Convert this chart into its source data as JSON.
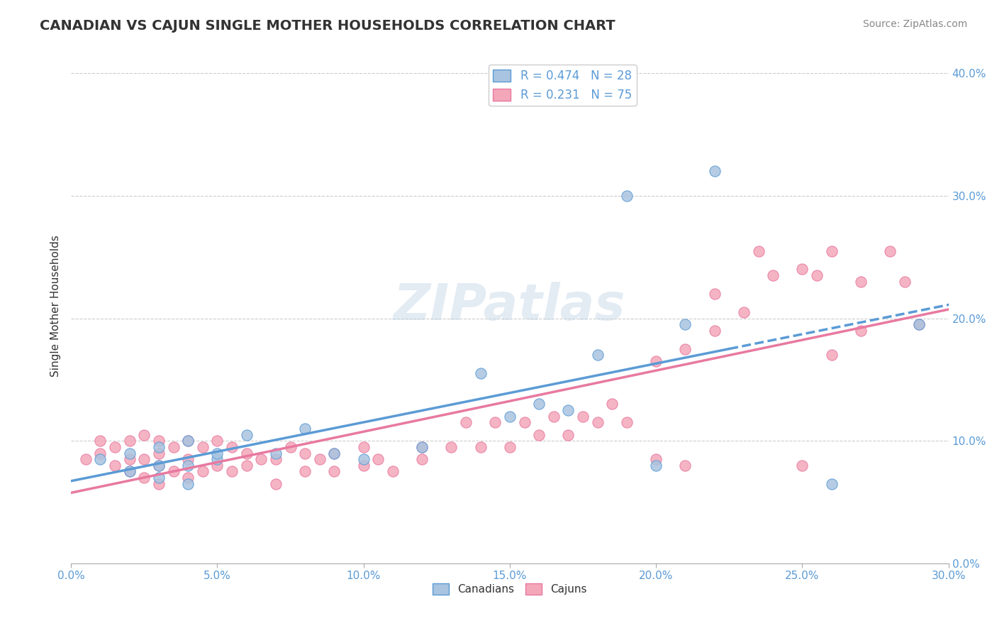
{
  "title": "CANADIAN VS CAJUN SINGLE MOTHER HOUSEHOLDS CORRELATION CHART",
  "source": "Source: ZipAtlas.com",
  "xlabel": "",
  "ylabel": "Single Mother Households",
  "xlim": [
    0.0,
    0.3
  ],
  "ylim": [
    0.0,
    0.42
  ],
  "xticks": [
    0.0,
    0.05,
    0.1,
    0.15,
    0.2,
    0.25,
    0.3
  ],
  "yticks": [
    0.0,
    0.1,
    0.2,
    0.3,
    0.4
  ],
  "ytick_labels_right": [
    "0.0%",
    "10.0%",
    "20.0%",
    "30.0%",
    "40.0%"
  ],
  "xtick_labels": [
    "0.0%",
    "5.0%",
    "10.0%",
    "15.0%",
    "20.0%",
    "25.0%",
    "30.0%"
  ],
  "legend_r1": "R = 0.474   N = 28",
  "legend_r2": "R = 0.231   N = 75",
  "canadians_color": "#a8c4e0",
  "cajuns_color": "#f4a7b9",
  "canadian_line_color": "#5b9bd5",
  "cajun_line_color": "#e879a0",
  "watermark": "ZIPatlas",
  "background_color": "#ffffff",
  "grid_color": "#cccccc",
  "canadians_x": [
    0.01,
    0.02,
    0.02,
    0.03,
    0.03,
    0.03,
    0.04,
    0.04,
    0.04,
    0.05,
    0.05,
    0.06,
    0.07,
    0.08,
    0.09,
    0.1,
    0.12,
    0.14,
    0.15,
    0.16,
    0.17,
    0.18,
    0.19,
    0.2,
    0.21,
    0.22,
    0.26,
    0.29
  ],
  "canadians_y": [
    0.085,
    0.075,
    0.09,
    0.07,
    0.08,
    0.095,
    0.065,
    0.08,
    0.1,
    0.085,
    0.09,
    0.105,
    0.09,
    0.11,
    0.09,
    0.085,
    0.095,
    0.155,
    0.12,
    0.13,
    0.125,
    0.17,
    0.3,
    0.08,
    0.195,
    0.32,
    0.065,
    0.195
  ],
  "cajuns_x": [
    0.005,
    0.01,
    0.01,
    0.015,
    0.015,
    0.02,
    0.02,
    0.02,
    0.025,
    0.025,
    0.025,
    0.03,
    0.03,
    0.03,
    0.03,
    0.035,
    0.035,
    0.04,
    0.04,
    0.04,
    0.045,
    0.045,
    0.05,
    0.05,
    0.055,
    0.055,
    0.06,
    0.06,
    0.065,
    0.07,
    0.07,
    0.075,
    0.08,
    0.08,
    0.085,
    0.09,
    0.09,
    0.1,
    0.1,
    0.105,
    0.11,
    0.12,
    0.12,
    0.13,
    0.135,
    0.14,
    0.145,
    0.15,
    0.155,
    0.16,
    0.165,
    0.17,
    0.175,
    0.18,
    0.185,
    0.19,
    0.2,
    0.21,
    0.22,
    0.22,
    0.23,
    0.235,
    0.24,
    0.25,
    0.255,
    0.26,
    0.27,
    0.28,
    0.285,
    0.2,
    0.21,
    0.25,
    0.26,
    0.27,
    0.29
  ],
  "cajuns_y": [
    0.085,
    0.09,
    0.1,
    0.08,
    0.095,
    0.075,
    0.085,
    0.1,
    0.07,
    0.085,
    0.105,
    0.065,
    0.08,
    0.09,
    0.1,
    0.075,
    0.095,
    0.07,
    0.085,
    0.1,
    0.075,
    0.095,
    0.08,
    0.1,
    0.075,
    0.095,
    0.08,
    0.09,
    0.085,
    0.065,
    0.085,
    0.095,
    0.075,
    0.09,
    0.085,
    0.075,
    0.09,
    0.08,
    0.095,
    0.085,
    0.075,
    0.085,
    0.095,
    0.095,
    0.115,
    0.095,
    0.115,
    0.095,
    0.115,
    0.105,
    0.12,
    0.105,
    0.12,
    0.115,
    0.13,
    0.115,
    0.165,
    0.175,
    0.19,
    0.22,
    0.205,
    0.255,
    0.235,
    0.24,
    0.235,
    0.255,
    0.23,
    0.255,
    0.23,
    0.085,
    0.08,
    0.08,
    0.17,
    0.19,
    0.195
  ]
}
